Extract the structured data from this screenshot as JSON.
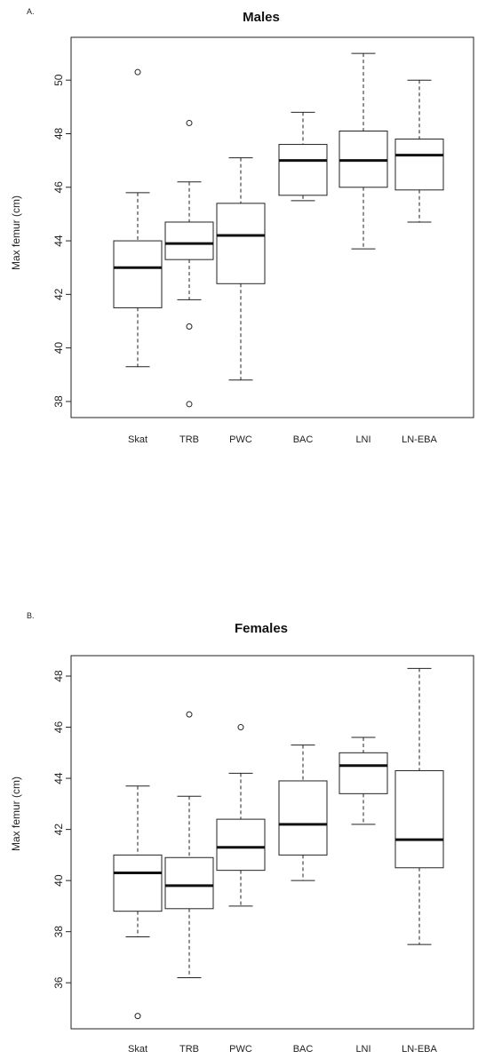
{
  "chart_data": [
    {
      "type": "box",
      "panel_label": "A.",
      "title": "Males",
      "xlabel": "",
      "ylabel": "Max femur (cm)",
      "ylim": [
        37.4,
        51.6
      ],
      "yticks": [
        38,
        40,
        42,
        44,
        46,
        48,
        50
      ],
      "categories": [
        "Skat",
        "TRB",
        "PWC",
        "BAC",
        "LNI",
        "LN-EBA"
      ],
      "boxes": [
        {
          "whisker_low": 39.3,
          "q1": 41.5,
          "median": 43.0,
          "q3": 44.0,
          "whisker_high": 45.8,
          "outliers": [
            50.3
          ]
        },
        {
          "whisker_low": 41.8,
          "q1": 43.3,
          "median": 43.9,
          "q3": 44.7,
          "whisker_high": 46.2,
          "outliers": [
            48.4,
            40.8,
            37.9
          ]
        },
        {
          "whisker_low": 38.8,
          "q1": 42.4,
          "median": 44.2,
          "q3": 45.4,
          "whisker_high": 47.1,
          "outliers": []
        },
        {
          "whisker_low": 45.5,
          "q1": 45.7,
          "median": 47.0,
          "q3": 47.6,
          "whisker_high": 48.8,
          "outliers": []
        },
        {
          "whisker_low": 43.7,
          "q1": 46.0,
          "median": 47.0,
          "q3": 48.1,
          "whisker_high": 51.0,
          "outliers": []
        },
        {
          "whisker_low": 44.7,
          "q1": 45.9,
          "median": 47.2,
          "q3": 47.8,
          "whisker_high": 50.0,
          "outliers": []
        }
      ]
    },
    {
      "type": "box",
      "panel_label": "B.",
      "title": "Females",
      "xlabel": "",
      "ylabel": "Max femur (cm)",
      "ylim": [
        34.2,
        48.8
      ],
      "yticks": [
        36,
        38,
        40,
        42,
        44,
        46,
        48
      ],
      "categories": [
        "Skat",
        "TRB",
        "PWC",
        "BAC",
        "LNI",
        "LN-EBA"
      ],
      "boxes": [
        {
          "whisker_low": 37.8,
          "q1": 38.8,
          "median": 40.3,
          "q3": 41.0,
          "whisker_high": 43.7,
          "outliers": [
            34.7
          ]
        },
        {
          "whisker_low": 36.2,
          "q1": 38.9,
          "median": 39.8,
          "q3": 40.9,
          "whisker_high": 43.3,
          "outliers": [
            46.5
          ]
        },
        {
          "whisker_low": 39.0,
          "q1": 40.4,
          "median": 41.3,
          "q3": 42.4,
          "whisker_high": 44.2,
          "outliers": [
            46.0
          ]
        },
        {
          "whisker_low": 40.0,
          "q1": 41.0,
          "median": 42.2,
          "q3": 43.9,
          "whisker_high": 45.3,
          "outliers": []
        },
        {
          "whisker_low": 42.2,
          "q1": 43.4,
          "median": 44.5,
          "q3": 45.0,
          "whisker_high": 45.6,
          "outliers": []
        },
        {
          "whisker_low": 37.5,
          "q1": 40.5,
          "median": 41.6,
          "q3": 44.3,
          "whisker_high": 48.3,
          "outliers": []
        }
      ]
    }
  ]
}
